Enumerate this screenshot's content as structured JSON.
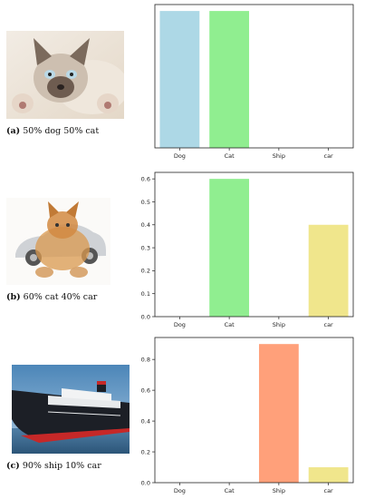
{
  "panels": [
    {
      "caption_letter": "(a)",
      "caption_text": "50% dog 50% cat",
      "photo_icon": "cat-dog-blend-photo"
    },
    {
      "caption_letter": "(b)",
      "caption_text": "60% cat 40% car",
      "photo_icon": "cat-car-blend-photo"
    },
    {
      "caption_letter": "(c)",
      "caption_text": "90% ship 10% car",
      "photo_icon": "cruise-ship-photo"
    }
  ],
  "chart_data": [
    {
      "type": "bar",
      "categories": [
        "Dog",
        "Cat",
        "Ship",
        "car"
      ],
      "values": [
        0.5,
        0.5,
        0,
        0
      ],
      "colors": [
        "#add8e6",
        "#90ee90",
        "#ffa07a",
        "#f0e68c"
      ],
      "ylim": [
        0,
        0.5
      ],
      "yticks": [],
      "ytick_labels": [],
      "xlabel": "",
      "ylabel": "",
      "title": "",
      "grid": false
    },
    {
      "type": "bar",
      "categories": [
        "Dog",
        "Cat",
        "Ship",
        "car"
      ],
      "values": [
        0,
        0.6,
        0,
        0.4
      ],
      "colors": [
        "#add8e6",
        "#90ee90",
        "#ffa07a",
        "#f0e68c"
      ],
      "ylim": [
        0,
        0.6
      ],
      "yticks": [
        0.0,
        0.1,
        0.2,
        0.3,
        0.4,
        0.5,
        0.6
      ],
      "ytick_labels": [
        "0.0",
        "0.1",
        "0.2",
        "0.3",
        "0.4",
        "0.5",
        "0.6"
      ],
      "xlabel": "",
      "ylabel": "",
      "title": "",
      "grid": false
    },
    {
      "type": "bar",
      "categories": [
        "Dog",
        "Cat",
        "Ship",
        "car"
      ],
      "values": [
        0,
        0,
        0.9,
        0.1
      ],
      "colors": [
        "#add8e6",
        "#90ee90",
        "#ffa07a",
        "#f0e68c"
      ],
      "ylim": [
        0,
        0.9
      ],
      "yticks": [
        0.0,
        0.2,
        0.4,
        0.6,
        0.8
      ],
      "ytick_labels": [
        "0.0",
        "0.2",
        "0.4",
        "0.6",
        "0.8"
      ],
      "xlabel": "",
      "ylabel": "",
      "title": "",
      "grid": false
    }
  ]
}
